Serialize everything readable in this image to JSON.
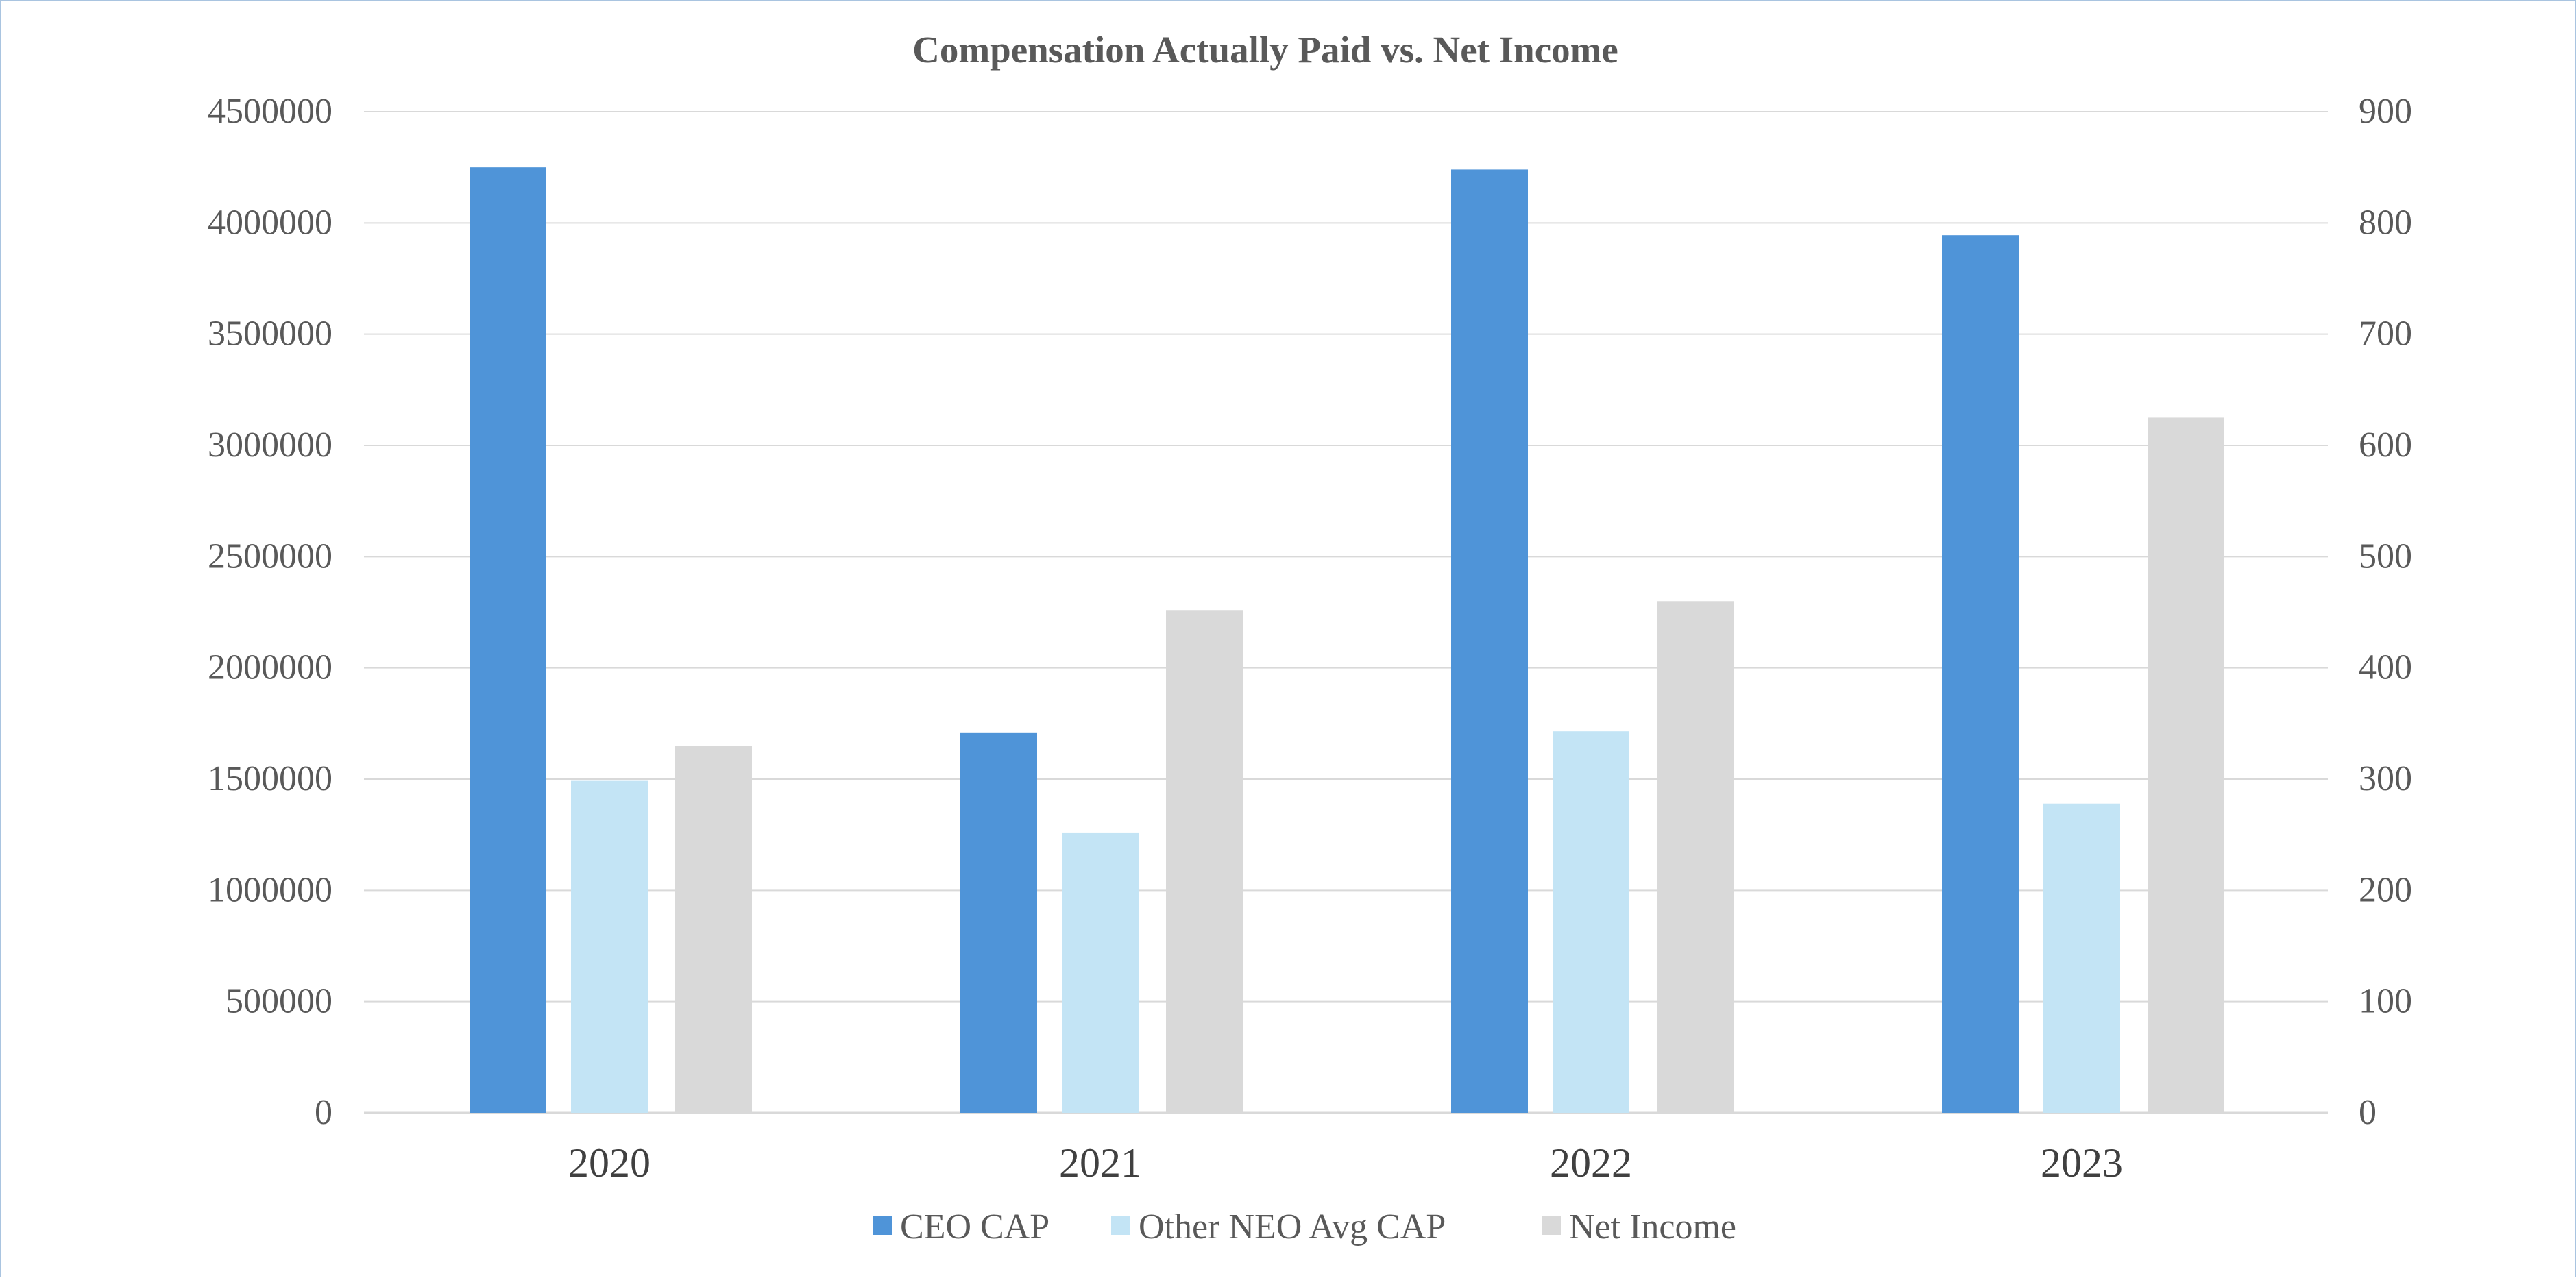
{
  "chart_data": {
    "type": "bar",
    "title": "Compensation Actually Paid vs. Net Income",
    "categories": [
      "2020",
      "2021",
      "2022",
      "2023"
    ],
    "series": [
      {
        "name": "CEO CAP",
        "axis": "left",
        "color": "#4f94d8",
        "values": [
          4250000,
          1710000,
          4240000,
          3945000
        ]
      },
      {
        "name": "Other NEO Avg CAP",
        "axis": "left",
        "color": "#c3e4f5",
        "values": [
          1495000,
          1260000,
          1715000,
          1390000
        ]
      },
      {
        "name": "Net Income",
        "axis": "right",
        "color": "#d9d9d9",
        "values": [
          330,
          452,
          460,
          625
        ]
      }
    ],
    "y_left": {
      "min": 0,
      "max": 4500000,
      "ticks": [
        "0",
        "500000",
        "1000000",
        "1500000",
        "2000000",
        "2500000",
        "3000000",
        "3500000",
        "4000000",
        "4500000"
      ]
    },
    "y_right": {
      "min": 0,
      "max": 900,
      "ticks": [
        "0",
        "100",
        "200",
        "300",
        "400",
        "500",
        "600",
        "700",
        "800",
        "900"
      ]
    },
    "grid": true,
    "legend_position": "bottom-center",
    "gridline_color": "#d9d9d9",
    "axis_line_color": "#d9d9d9"
  }
}
